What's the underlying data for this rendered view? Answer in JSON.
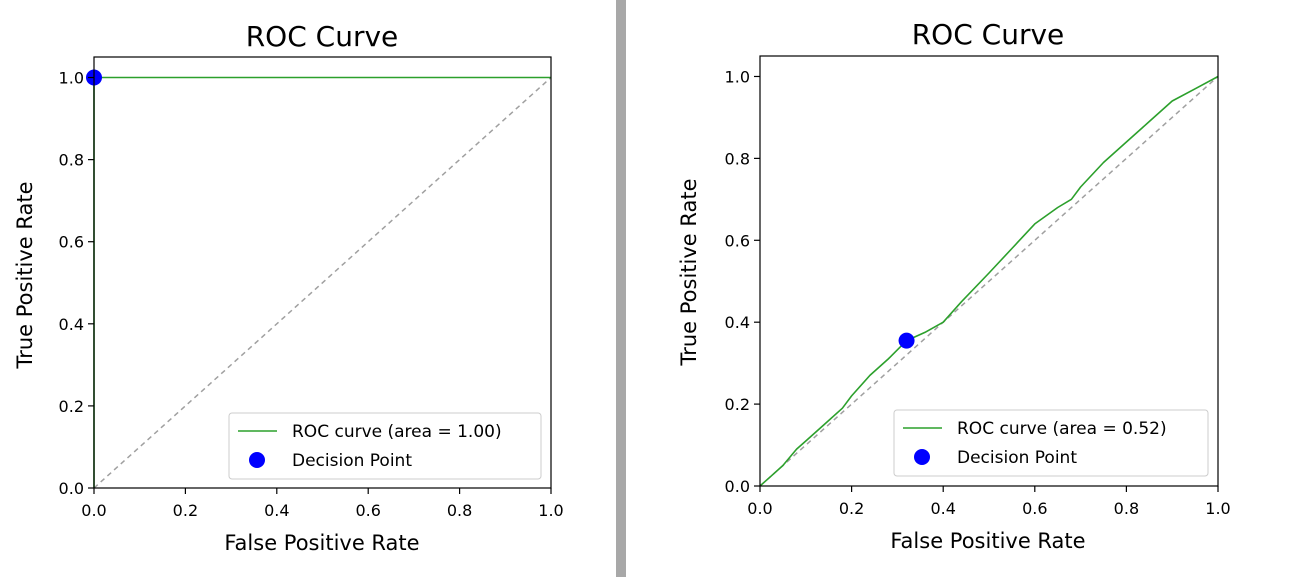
{
  "chart_data": [
    {
      "type": "line",
      "title": "ROC Curve",
      "xlabel": "False Positive Rate",
      "ylabel": "True Positive Rate",
      "xlim": [
        0.0,
        1.0
      ],
      "ylim": [
        0.0,
        1.05
      ],
      "xticks": [
        "0.0",
        "0.2",
        "0.4",
        "0.6",
        "0.8",
        "1.0"
      ],
      "yticks": [
        "0.0",
        "0.2",
        "0.4",
        "0.6",
        "0.8",
        "1.0"
      ],
      "grid": false,
      "legend_position": "lower-right",
      "series": [
        {
          "name": "ROC curve (area = 1.00)",
          "color": "#2ca02c",
          "x": [
            0.0,
            0.0,
            1.0
          ],
          "y": [
            0.0,
            1.0,
            1.0
          ]
        }
      ],
      "baseline": {
        "color": "#a0a0a0",
        "style": "dashed",
        "x": [
          0.0,
          1.0
        ],
        "y": [
          0.0,
          1.0
        ]
      },
      "points": [
        {
          "name": "Decision Point",
          "color": "#0000ff",
          "x": 0.0,
          "y": 1.0
        }
      ]
    },
    {
      "type": "line",
      "title": "ROC Curve",
      "xlabel": "False Positive Rate",
      "ylabel": "True Positive Rate",
      "xlim": [
        0.0,
        1.0
      ],
      "ylim": [
        0.0,
        1.05
      ],
      "xticks": [
        "0.0",
        "0.2",
        "0.4",
        "0.6",
        "0.8",
        "1.0"
      ],
      "yticks": [
        "0.0",
        "0.2",
        "0.4",
        "0.6",
        "0.8",
        "1.0"
      ],
      "grid": false,
      "legend_position": "lower-right",
      "series": [
        {
          "name": "ROC curve (area = 0.52)",
          "color": "#2ca02c",
          "x": [
            0.0,
            0.02,
            0.05,
            0.08,
            0.1,
            0.14,
            0.18,
            0.2,
            0.24,
            0.28,
            0.32,
            0.36,
            0.4,
            0.44,
            0.5,
            0.55,
            0.6,
            0.65,
            0.68,
            0.7,
            0.75,
            0.8,
            0.85,
            0.9,
            0.95,
            1.0
          ],
          "y": [
            0.0,
            0.02,
            0.05,
            0.09,
            0.11,
            0.15,
            0.19,
            0.22,
            0.27,
            0.31,
            0.355,
            0.375,
            0.4,
            0.45,
            0.52,
            0.58,
            0.64,
            0.68,
            0.7,
            0.73,
            0.79,
            0.84,
            0.89,
            0.94,
            0.97,
            1.0
          ]
        }
      ],
      "baseline": {
        "color": "#a0a0a0",
        "style": "dashed",
        "x": [
          0.0,
          1.0
        ],
        "y": [
          0.0,
          1.0
        ]
      },
      "points": [
        {
          "name": "Decision Point",
          "color": "#0000ff",
          "x": 0.32,
          "y": 0.355
        }
      ]
    }
  ]
}
